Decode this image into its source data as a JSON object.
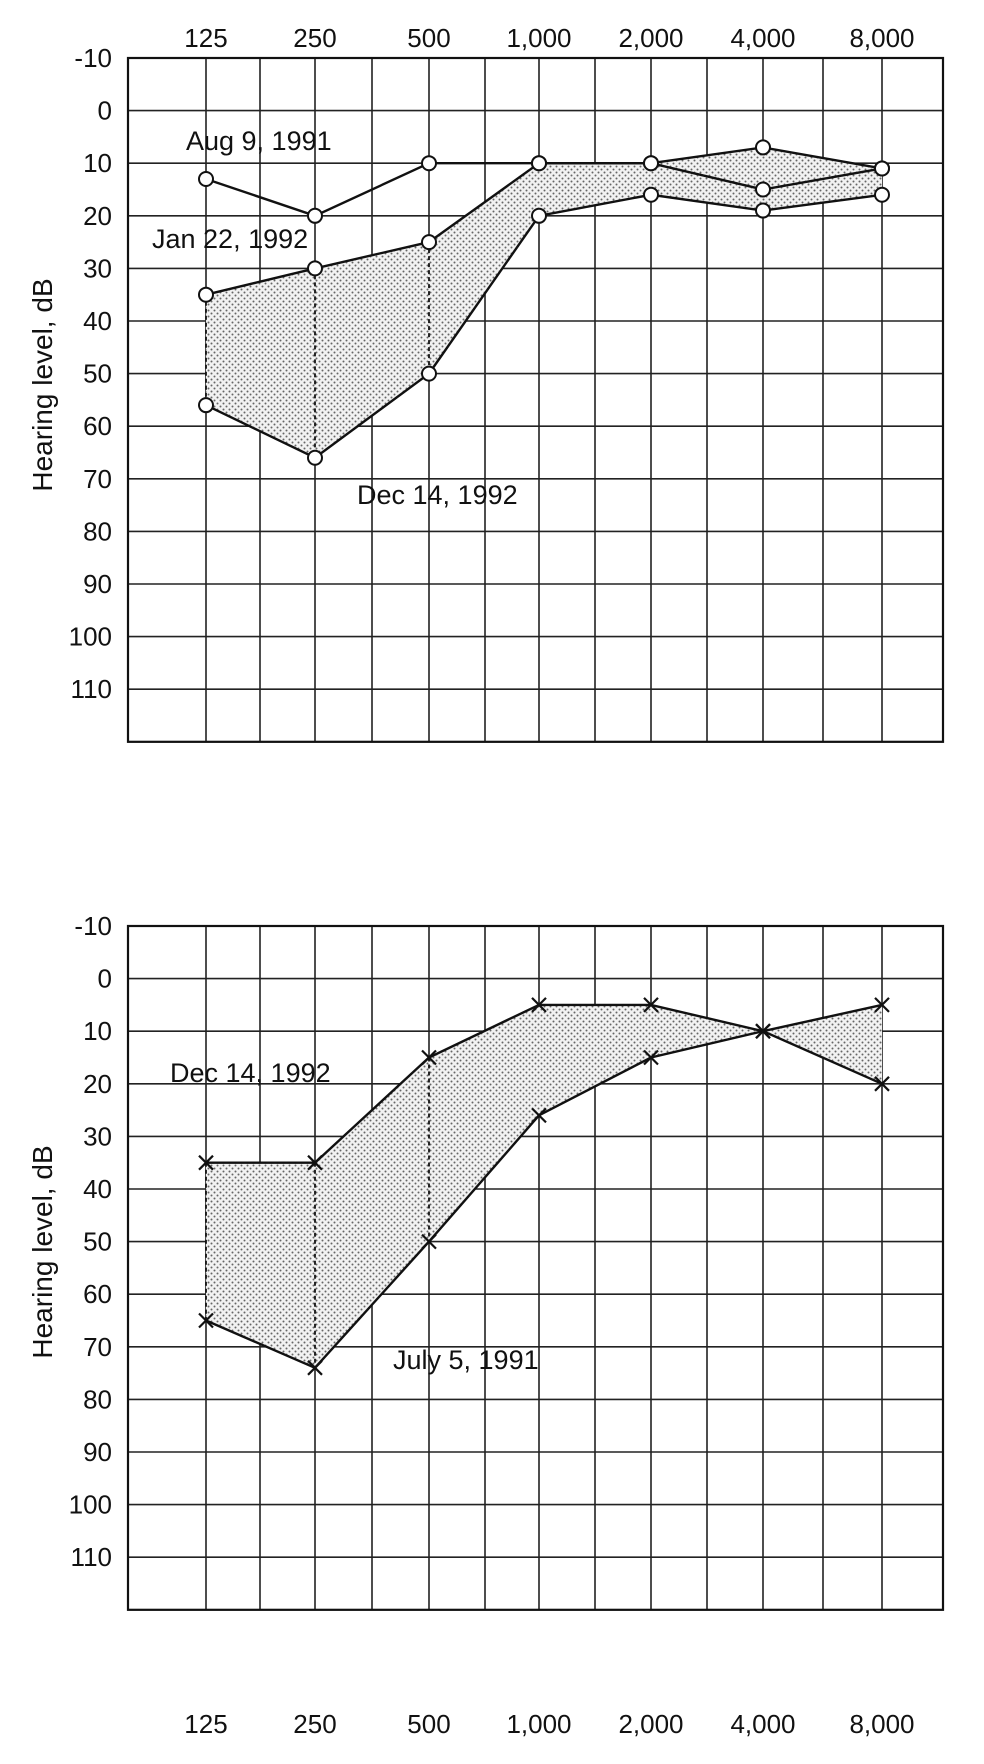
{
  "chart_data": [
    {
      "type": "line",
      "xlabel": "",
      "ylabel": "Hearing level, dB",
      "categories": [
        "125",
        "250",
        "500",
        "1,000",
        "2,000",
        "4,000",
        "8,000"
      ],
      "x_ticks_position": "top",
      "y_ticks": [
        "-10",
        "0",
        "10",
        "20",
        "30",
        "40",
        "50",
        "60",
        "70",
        "80",
        "90",
        "100",
        "110"
      ],
      "ylim": [
        -10,
        120
      ],
      "y_inverted": true,
      "grid": true,
      "marker": "circle",
      "series": [
        {
          "name": "Aug 9, 1991",
          "values": [
            13,
            20,
            10,
            10,
            10,
            15,
            11
          ]
        },
        {
          "name": "Jan 22, 1992",
          "values": [
            35,
            30,
            25,
            10,
            10,
            7,
            11
          ]
        },
        {
          "name": "Dec 14, 1992",
          "values": [
            56,
            66,
            50,
            20,
            16,
            19,
            16
          ]
        }
      ],
      "shaded_between": [
        "Jan 22, 1992",
        "Dec 14, 1992"
      ]
    },
    {
      "type": "line",
      "xlabel": "",
      "ylabel": "Hearing level, dB",
      "categories": [
        "125",
        "250",
        "500",
        "1,000",
        "2,000",
        "4,000",
        "8,000"
      ],
      "x_ticks_position": "bottom",
      "y_ticks": [
        "-10",
        "0",
        "10",
        "20",
        "30",
        "40",
        "50",
        "60",
        "70",
        "80",
        "90",
        "100",
        "110"
      ],
      "ylim": [
        -10,
        120
      ],
      "y_inverted": true,
      "grid": true,
      "marker": "x",
      "series": [
        {
          "name": "Dec 14, 1992",
          "values": [
            35,
            35,
            15,
            5,
            5,
            10,
            20
          ]
        },
        {
          "name": "July 5, 1991",
          "values": [
            65,
            74,
            50,
            26,
            15,
            10,
            5
          ]
        }
      ],
      "shaded_between": [
        "Dec 14, 1992",
        "July 5, 1991"
      ]
    }
  ]
}
